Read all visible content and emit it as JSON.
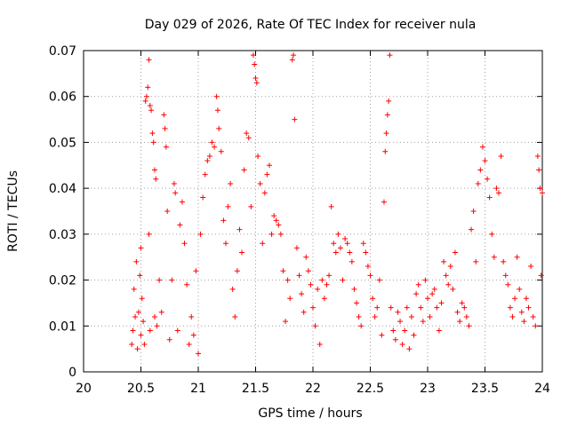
{
  "chart_data": {
    "type": "scatter",
    "title": "Day 029 of 2026, Rate Of TEC Index for receiver nula",
    "xlabel": "GPS time / hours",
    "ylabel": "ROTI / TECUs",
    "xlim": [
      20,
      24
    ],
    "ylim": [
      0,
      0.07
    ],
    "x_ticks": [
      "20",
      "20.5",
      "21",
      "21.5",
      "22",
      "22.5",
      "23",
      "23.5",
      "24"
    ],
    "y_ticks": [
      "0",
      "0.01",
      "0.02",
      "0.03",
      "0.04",
      "0.05",
      "0.06",
      "0.07"
    ],
    "grid": true,
    "marker": "+",
    "series_color": "#ff0000",
    "series": [
      {
        "points": [
          [
            20.42,
            0.006
          ],
          [
            20.43,
            0.009
          ],
          [
            20.44,
            0.018
          ],
          [
            20.45,
            0.012
          ],
          [
            20.46,
            0.024
          ],
          [
            20.47,
            0.005
          ],
          [
            20.48,
            0.013
          ],
          [
            20.49,
            0.021
          ],
          [
            20.5,
            0.027
          ],
          [
            20.5,
            0.008
          ],
          [
            20.51,
            0.016
          ],
          [
            20.52,
            0.011
          ],
          [
            20.53,
            0.006
          ],
          [
            20.54,
            0.059
          ],
          [
            20.55,
            0.06
          ],
          [
            20.56,
            0.062
          ],
          [
            20.57,
            0.068
          ],
          [
            20.57,
            0.03
          ],
          [
            20.58,
            0.058
          ],
          [
            20.58,
            0.009
          ],
          [
            20.59,
            0.057
          ],
          [
            20.6,
            0.052
          ],
          [
            20.61,
            0.05
          ],
          [
            20.62,
            0.044
          ],
          [
            20.62,
            0.012
          ],
          [
            20.63,
            0.042
          ],
          [
            20.64,
            0.01
          ],
          [
            20.66,
            0.02
          ],
          [
            20.68,
            0.013
          ],
          [
            20.7,
            0.056
          ],
          [
            20.71,
            0.053
          ],
          [
            20.72,
            0.049
          ],
          [
            20.73,
            0.035
          ],
          [
            20.75,
            0.007
          ],
          [
            20.77,
            0.02
          ],
          [
            20.79,
            0.041
          ],
          [
            20.8,
            0.039
          ],
          [
            20.82,
            0.009
          ],
          [
            20.84,
            0.032
          ],
          [
            20.86,
            0.037
          ],
          [
            20.88,
            0.028
          ],
          [
            20.9,
            0.019
          ],
          [
            20.92,
            0.006
          ],
          [
            20.94,
            0.012
          ],
          [
            20.96,
            0.008
          ],
          [
            20.98,
            0.022
          ],
          [
            21.0,
            0.004
          ],
          [
            21.02,
            0.03
          ],
          [
            21.04,
            0.038
          ],
          [
            21.06,
            0.043
          ],
          [
            21.08,
            0.046
          ],
          [
            21.1,
            0.047
          ],
          [
            21.12,
            0.05
          ],
          [
            21.14,
            0.049
          ],
          [
            21.16,
            0.06
          ],
          [
            21.17,
            0.057
          ],
          [
            21.18,
            0.053
          ],
          [
            21.2,
            0.048
          ],
          [
            21.22,
            0.033
          ],
          [
            21.24,
            0.028
          ],
          [
            21.26,
            0.036
          ],
          [
            21.28,
            0.041
          ],
          [
            21.3,
            0.018
          ],
          [
            21.32,
            0.012
          ],
          [
            21.34,
            0.022
          ],
          [
            21.36,
            0.031
          ],
          [
            21.38,
            0.026
          ],
          [
            21.4,
            0.044
          ],
          [
            21.42,
            0.052
          ],
          [
            21.44,
            0.051
          ],
          [
            21.46,
            0.036
          ],
          [
            21.48,
            0.069
          ],
          [
            21.49,
            0.067
          ],
          [
            21.5,
            0.064
          ],
          [
            21.51,
            0.063
          ],
          [
            21.52,
            0.047
          ],
          [
            21.54,
            0.041
          ],
          [
            21.56,
            0.028
          ],
          [
            21.58,
            0.039
          ],
          [
            21.6,
            0.043
          ],
          [
            21.62,
            0.045
          ],
          [
            21.64,
            0.03
          ],
          [
            21.66,
            0.034
          ],
          [
            21.68,
            0.033
          ],
          [
            21.7,
            0.032
          ],
          [
            21.72,
            0.03
          ],
          [
            21.74,
            0.022
          ],
          [
            21.76,
            0.011
          ],
          [
            21.78,
            0.02
          ],
          [
            21.8,
            0.016
          ],
          [
            21.82,
            0.068
          ],
          [
            21.83,
            0.069
          ],
          [
            21.84,
            0.055
          ],
          [
            21.86,
            0.027
          ],
          [
            21.88,
            0.021
          ],
          [
            21.9,
            0.017
          ],
          [
            21.92,
            0.013
          ],
          [
            21.94,
            0.025
          ],
          [
            21.96,
            0.022
          ],
          [
            21.98,
            0.019
          ],
          [
            22.0,
            0.014
          ],
          [
            22.02,
            0.01
          ],
          [
            22.04,
            0.018
          ],
          [
            22.06,
            0.006
          ],
          [
            22.08,
            0.02
          ],
          [
            22.1,
            0.016
          ],
          [
            22.12,
            0.019
          ],
          [
            22.14,
            0.021
          ],
          [
            22.16,
            0.036
          ],
          [
            22.18,
            0.028
          ],
          [
            22.2,
            0.026
          ],
          [
            22.22,
            0.03
          ],
          [
            22.24,
            0.027
          ],
          [
            22.26,
            0.02
          ],
          [
            22.28,
            0.029
          ],
          [
            22.3,
            0.028
          ],
          [
            22.32,
            0.026
          ],
          [
            22.34,
            0.024
          ],
          [
            22.36,
            0.018
          ],
          [
            22.38,
            0.015
          ],
          [
            22.4,
            0.012
          ],
          [
            22.42,
            0.01
          ],
          [
            22.44,
            0.028
          ],
          [
            22.46,
            0.026
          ],
          [
            22.48,
            0.023
          ],
          [
            22.5,
            0.021
          ],
          [
            22.52,
            0.016
          ],
          [
            22.54,
            0.012
          ],
          [
            22.56,
            0.014
          ],
          [
            22.58,
            0.02
          ],
          [
            22.6,
            0.008
          ],
          [
            22.62,
            0.037
          ],
          [
            22.63,
            0.048
          ],
          [
            22.64,
            0.052
          ],
          [
            22.65,
            0.056
          ],
          [
            22.66,
            0.059
          ],
          [
            22.67,
            0.069
          ],
          [
            22.68,
            0.014
          ],
          [
            22.7,
            0.009
          ],
          [
            22.72,
            0.007
          ],
          [
            22.74,
            0.013
          ],
          [
            22.76,
            0.011
          ],
          [
            22.78,
            0.006
          ],
          [
            22.8,
            0.009
          ],
          [
            22.82,
            0.014
          ],
          [
            22.84,
            0.005
          ],
          [
            22.86,
            0.012
          ],
          [
            22.88,
            0.008
          ],
          [
            22.9,
            0.017
          ],
          [
            22.92,
            0.019
          ],
          [
            22.94,
            0.014
          ],
          [
            22.96,
            0.011
          ],
          [
            22.98,
            0.02
          ],
          [
            23.0,
            0.016
          ],
          [
            23.02,
            0.012
          ],
          [
            23.04,
            0.017
          ],
          [
            23.06,
            0.018
          ],
          [
            23.08,
            0.014
          ],
          [
            23.1,
            0.009
          ],
          [
            23.12,
            0.015
          ],
          [
            23.14,
            0.024
          ],
          [
            23.16,
            0.021
          ],
          [
            23.18,
            0.019
          ],
          [
            23.2,
            0.023
          ],
          [
            23.22,
            0.018
          ],
          [
            23.24,
            0.026
          ],
          [
            23.26,
            0.013
          ],
          [
            23.28,
            0.011
          ],
          [
            23.3,
            0.015
          ],
          [
            23.32,
            0.014
          ],
          [
            23.34,
            0.012
          ],
          [
            23.36,
            0.01
          ],
          [
            23.38,
            0.031
          ],
          [
            23.4,
            0.035
          ],
          [
            23.42,
            0.024
          ],
          [
            23.44,
            0.041
          ],
          [
            23.46,
            0.044
          ],
          [
            23.48,
            0.049
          ],
          [
            23.5,
            0.046
          ],
          [
            23.52,
            0.042
          ],
          [
            23.54,
            0.038
          ],
          [
            23.56,
            0.03
          ],
          [
            23.58,
            0.025
          ],
          [
            23.6,
            0.04
          ],
          [
            23.62,
            0.039
          ],
          [
            23.64,
            0.047
          ],
          [
            23.66,
            0.024
          ],
          [
            23.68,
            0.021
          ],
          [
            23.7,
            0.019
          ],
          [
            23.72,
            0.014
          ],
          [
            23.74,
            0.012
          ],
          [
            23.76,
            0.016
          ],
          [
            23.78,
            0.025
          ],
          [
            23.8,
            0.018
          ],
          [
            23.82,
            0.013
          ],
          [
            23.84,
            0.011
          ],
          [
            23.86,
            0.016
          ],
          [
            23.88,
            0.014
          ],
          [
            23.9,
            0.023
          ],
          [
            23.92,
            0.012
          ],
          [
            23.94,
            0.01
          ],
          [
            23.96,
            0.047
          ],
          [
            23.97,
            0.044
          ],
          [
            23.98,
            0.04
          ],
          [
            23.99,
            0.021
          ],
          [
            24.0,
            0.039
          ]
        ]
      }
    ]
  }
}
